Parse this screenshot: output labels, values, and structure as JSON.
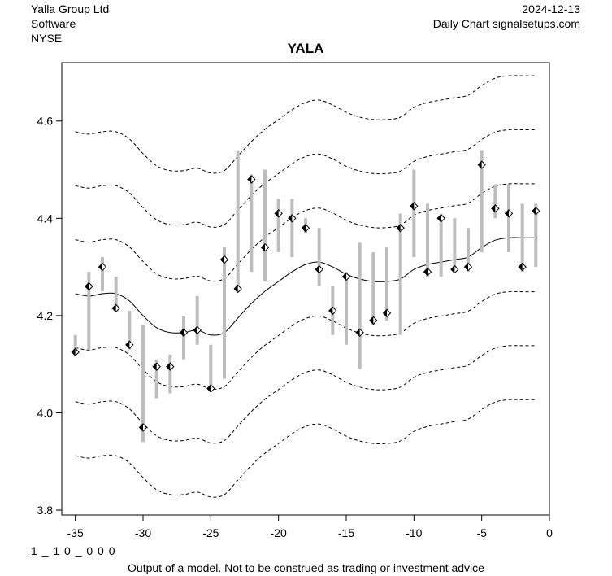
{
  "header": {
    "company": "Yalla Group Ltd",
    "sector": "Software",
    "exchange": "NYSE",
    "date": "2024-12-13",
    "source": "Daily Chart signalsetups.com"
  },
  "footer": {
    "code": "1 _ 1 0 _ 0 0 0",
    "disclaimer": "Output of a model. Not to be construed as trading or investment advice"
  },
  "chart_data": {
    "type": "line",
    "title": "YALA",
    "xlabel": "",
    "ylabel": "",
    "xlim": [
      -36,
      0
    ],
    "ylim": [
      3.79,
      4.72
    ],
    "x_ticks": [
      -35,
      -30,
      -25,
      -20,
      -15,
      -10,
      -5,
      0
    ],
    "y_ticks": [
      3.8,
      4.0,
      4.2,
      4.4,
      4.6
    ],
    "grid": false,
    "colors": {
      "range_bar": "#bdbdbd",
      "marker": "#000000",
      "line": "#000000"
    },
    "ohlc": [
      {
        "x": -35,
        "high": 4.16,
        "low": 4.12,
        "close": 4.125
      },
      {
        "x": -34,
        "high": 4.29,
        "low": 4.13,
        "close": 4.26
      },
      {
        "x": -33,
        "high": 4.32,
        "low": 4.25,
        "close": 4.3
      },
      {
        "x": -32,
        "high": 4.28,
        "low": 4.21,
        "close": 4.215
      },
      {
        "x": -31,
        "high": 4.21,
        "low": 4.13,
        "close": 4.14
      },
      {
        "x": -30,
        "high": 4.18,
        "low": 3.94,
        "close": 3.97
      },
      {
        "x": -29,
        "high": 4.11,
        "low": 4.03,
        "close": 4.095
      },
      {
        "x": -28,
        "high": 4.12,
        "low": 4.04,
        "close": 4.095
      },
      {
        "x": -27,
        "high": 4.2,
        "low": 4.11,
        "close": 4.165
      },
      {
        "x": -26,
        "high": 4.24,
        "low": 4.14,
        "close": 4.17
      },
      {
        "x": -25,
        "high": 4.14,
        "low": 4.05,
        "close": 4.05
      },
      {
        "x": -24,
        "high": 4.34,
        "low": 4.07,
        "close": 4.315
      },
      {
        "x": -23,
        "high": 4.54,
        "low": 4.25,
        "close": 4.255
      },
      {
        "x": -22,
        "high": 4.49,
        "low": 4.29,
        "close": 4.48
      },
      {
        "x": -21,
        "high": 4.5,
        "low": 4.27,
        "close": 4.34
      },
      {
        "x": -20,
        "high": 4.44,
        "low": 4.33,
        "close": 4.41
      },
      {
        "x": -19,
        "high": 4.44,
        "low": 4.32,
        "close": 4.4
      },
      {
        "x": -18,
        "high": 4.4,
        "low": 4.37,
        "close": 4.38
      },
      {
        "x": -17,
        "high": 4.38,
        "low": 4.26,
        "close": 4.295
      },
      {
        "x": -16,
        "high": 4.26,
        "low": 4.16,
        "close": 4.21
      },
      {
        "x": -15,
        "high": 4.29,
        "low": 4.14,
        "close": 4.28
      },
      {
        "x": -14,
        "high": 4.35,
        "low": 4.09,
        "close": 4.165
      },
      {
        "x": -13,
        "high": 4.33,
        "low": 4.18,
        "close": 4.19
      },
      {
        "x": -12,
        "high": 4.34,
        "low": 4.19,
        "close": 4.205
      },
      {
        "x": -11,
        "high": 4.41,
        "low": 4.16,
        "close": 4.38
      },
      {
        "x": -10,
        "high": 4.5,
        "low": 4.32,
        "close": 4.425
      },
      {
        "x": -9,
        "high": 4.43,
        "low": 4.28,
        "close": 4.29
      },
      {
        "x": -8,
        "high": 4.41,
        "low": 4.28,
        "close": 4.4
      },
      {
        "x": -7,
        "high": 4.4,
        "low": 4.29,
        "close": 4.295
      },
      {
        "x": -6,
        "high": 4.38,
        "low": 4.29,
        "close": 4.3
      },
      {
        "x": -5,
        "high": 4.54,
        "low": 4.33,
        "close": 4.51
      },
      {
        "x": -4,
        "high": 4.47,
        "low": 4.4,
        "close": 4.42
      },
      {
        "x": -3,
        "high": 4.47,
        "low": 4.33,
        "close": 4.41
      },
      {
        "x": -2,
        "high": 4.43,
        "low": 4.29,
        "close": 4.3
      },
      {
        "x": -1,
        "high": 4.43,
        "low": 4.3,
        "close": 4.415
      }
    ],
    "band_x": [
      -35,
      -34,
      -33,
      -32,
      -31,
      -30,
      -29,
      -28,
      -27,
      -26,
      -25,
      -24,
      -23,
      -22,
      -21,
      -20,
      -19,
      -18,
      -17,
      -16,
      -15,
      -14,
      -13,
      -12,
      -11,
      -10,
      -9,
      -8,
      -7,
      -6,
      -5,
      -4,
      -3,
      -2,
      -1
    ],
    "center": [
      4.245,
      4.24,
      4.245,
      4.245,
      4.23,
      4.2,
      4.175,
      4.165,
      4.165,
      4.17,
      4.16,
      4.165,
      4.195,
      4.225,
      4.25,
      4.27,
      4.29,
      4.305,
      4.31,
      4.3,
      4.285,
      4.275,
      4.27,
      4.27,
      4.275,
      4.295,
      4.305,
      4.31,
      4.315,
      4.32,
      4.34,
      4.355,
      4.36,
      4.36,
      4.36
    ],
    "band_offsets": [
      -0.333,
      -0.222,
      -0.111,
      0.111,
      0.222,
      0.333
    ]
  }
}
